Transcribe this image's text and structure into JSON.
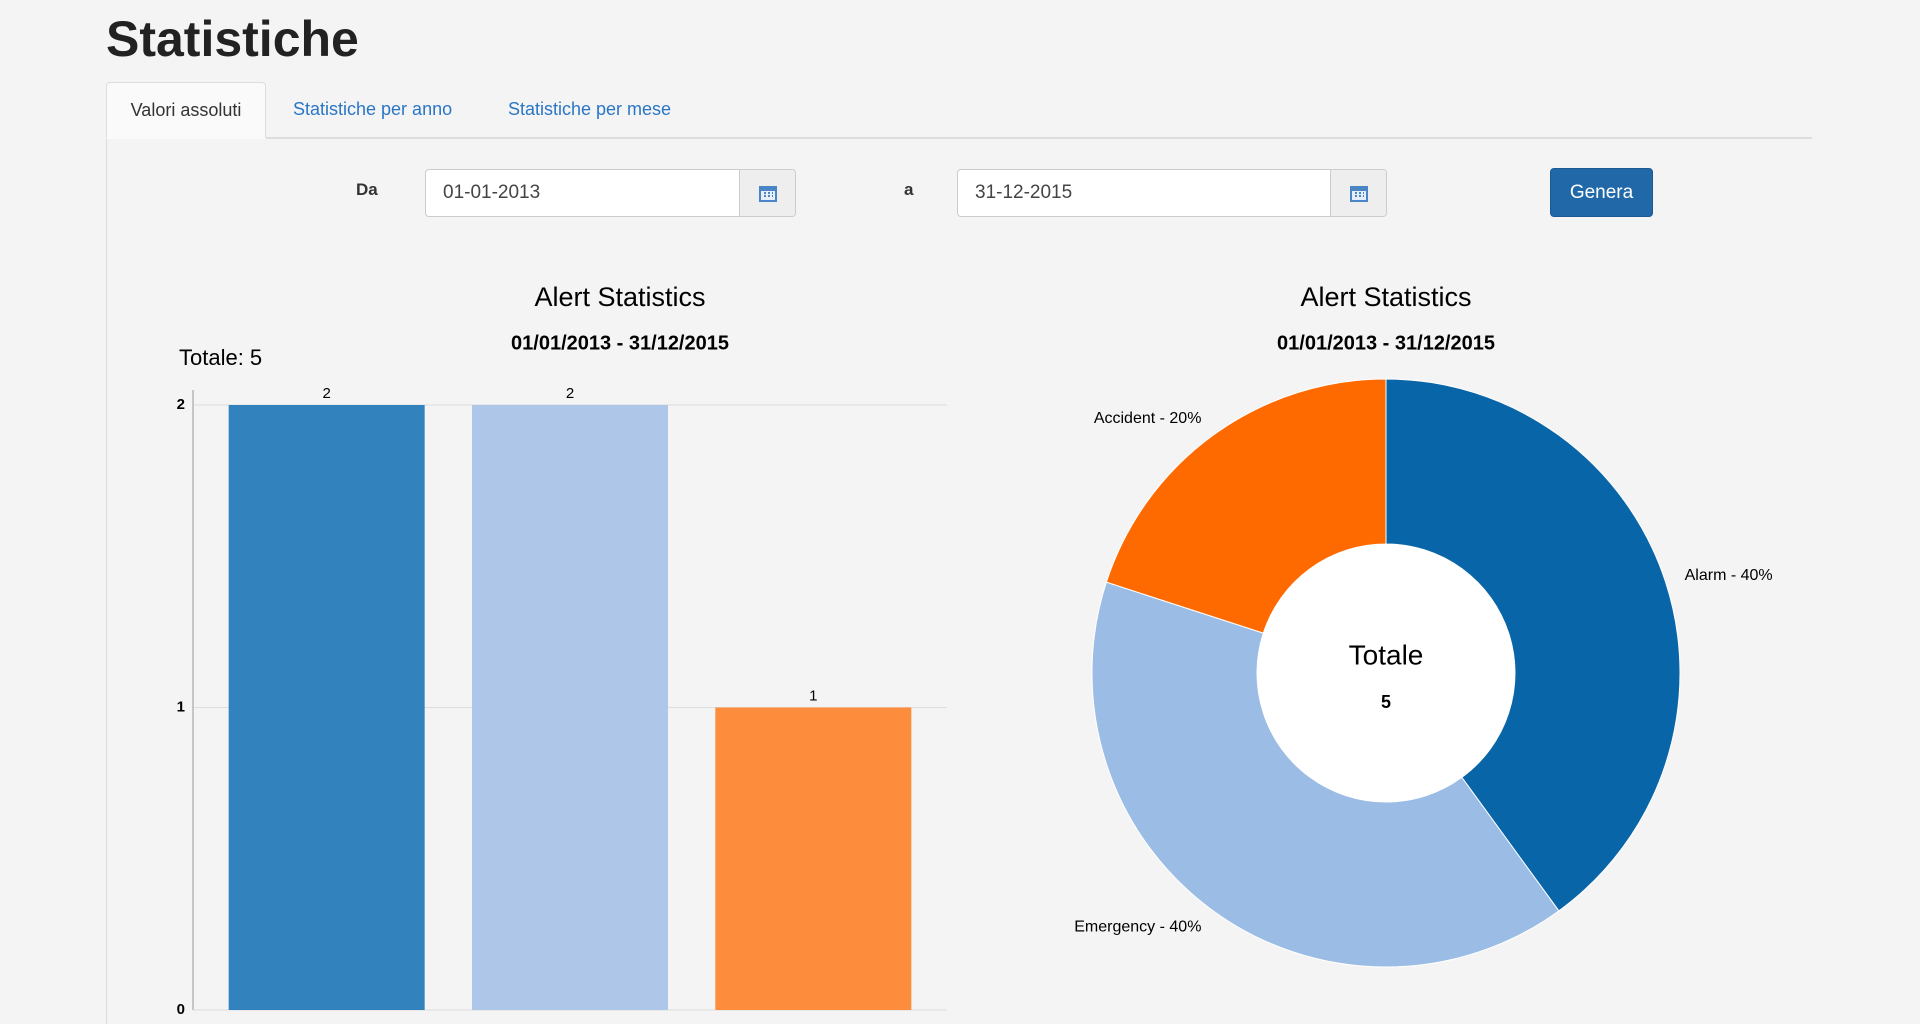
{
  "header": {
    "title": "Statistiche"
  },
  "tabs": [
    "Valori assoluti",
    "Statistiche per anno",
    "Statistiche per mese"
  ],
  "form": {
    "from_label": "Da",
    "from_value": "01-01-2013",
    "to_label": "a",
    "to_value": "31-12-2015",
    "button": "Genera"
  },
  "chart_data": [
    {
      "type": "bar",
      "title": "Alert Statistics",
      "subtitle": "01/01/2013 - 31/12/2015",
      "annotation": "Totale: 5",
      "categories": [
        null,
        null,
        null
      ],
      "values": [
        2,
        2,
        1
      ],
      "colors": [
        "#3182bd",
        "#aec7e8",
        "#fd8d3c"
      ],
      "ylim": [
        0,
        2
      ],
      "yticks": [
        0,
        1,
        2
      ],
      "grid": true
    },
    {
      "type": "pie",
      "donut": true,
      "title": "Alert Statistics",
      "subtitle": "01/01/2013 - 31/12/2015",
      "values": [
        40,
        40,
        20
      ],
      "value_labels": [
        "Alarm - 40%",
        "Emergency - 40%",
        "Accident - 20%"
      ],
      "colors": [
        "#0865a8",
        "#9bbce4",
        "#ff6a00"
      ],
      "center_label": "Totale",
      "center_value": 5
    }
  ]
}
